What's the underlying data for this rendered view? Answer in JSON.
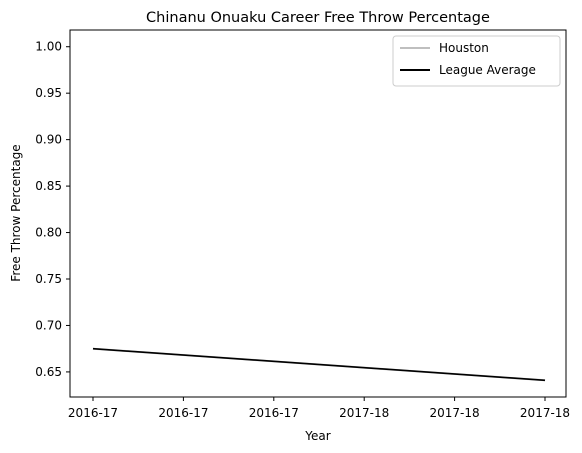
{
  "chart_data": {
    "type": "line",
    "title": "Chinanu Onuaku Career Free Throw Percentage",
    "xlabel": "Year",
    "ylabel": "Free Throw Percentage",
    "x_tick_labels": [
      "2016-17",
      "2016-17",
      "2016-17",
      "2017-18",
      "2017-18",
      "2017-18"
    ],
    "x_range": [
      0,
      1
    ],
    "y_ticks": [
      "0.65",
      "0.70",
      "0.75",
      "0.80",
      "0.85",
      "0.90",
      "0.95",
      "1.00"
    ],
    "ylim": [
      0.623,
      1.018
    ],
    "grid": false,
    "legend_position": "top-right",
    "series": [
      {
        "name": "Houston",
        "color": "#bfbfbf",
        "x": [
          0,
          1
        ],
        "y": [
          0.675,
          0.641
        ]
      },
      {
        "name": "League Average",
        "color": "#000000",
        "x": [
          0,
          1
        ],
        "y": [
          0.675,
          0.641
        ]
      }
    ]
  }
}
